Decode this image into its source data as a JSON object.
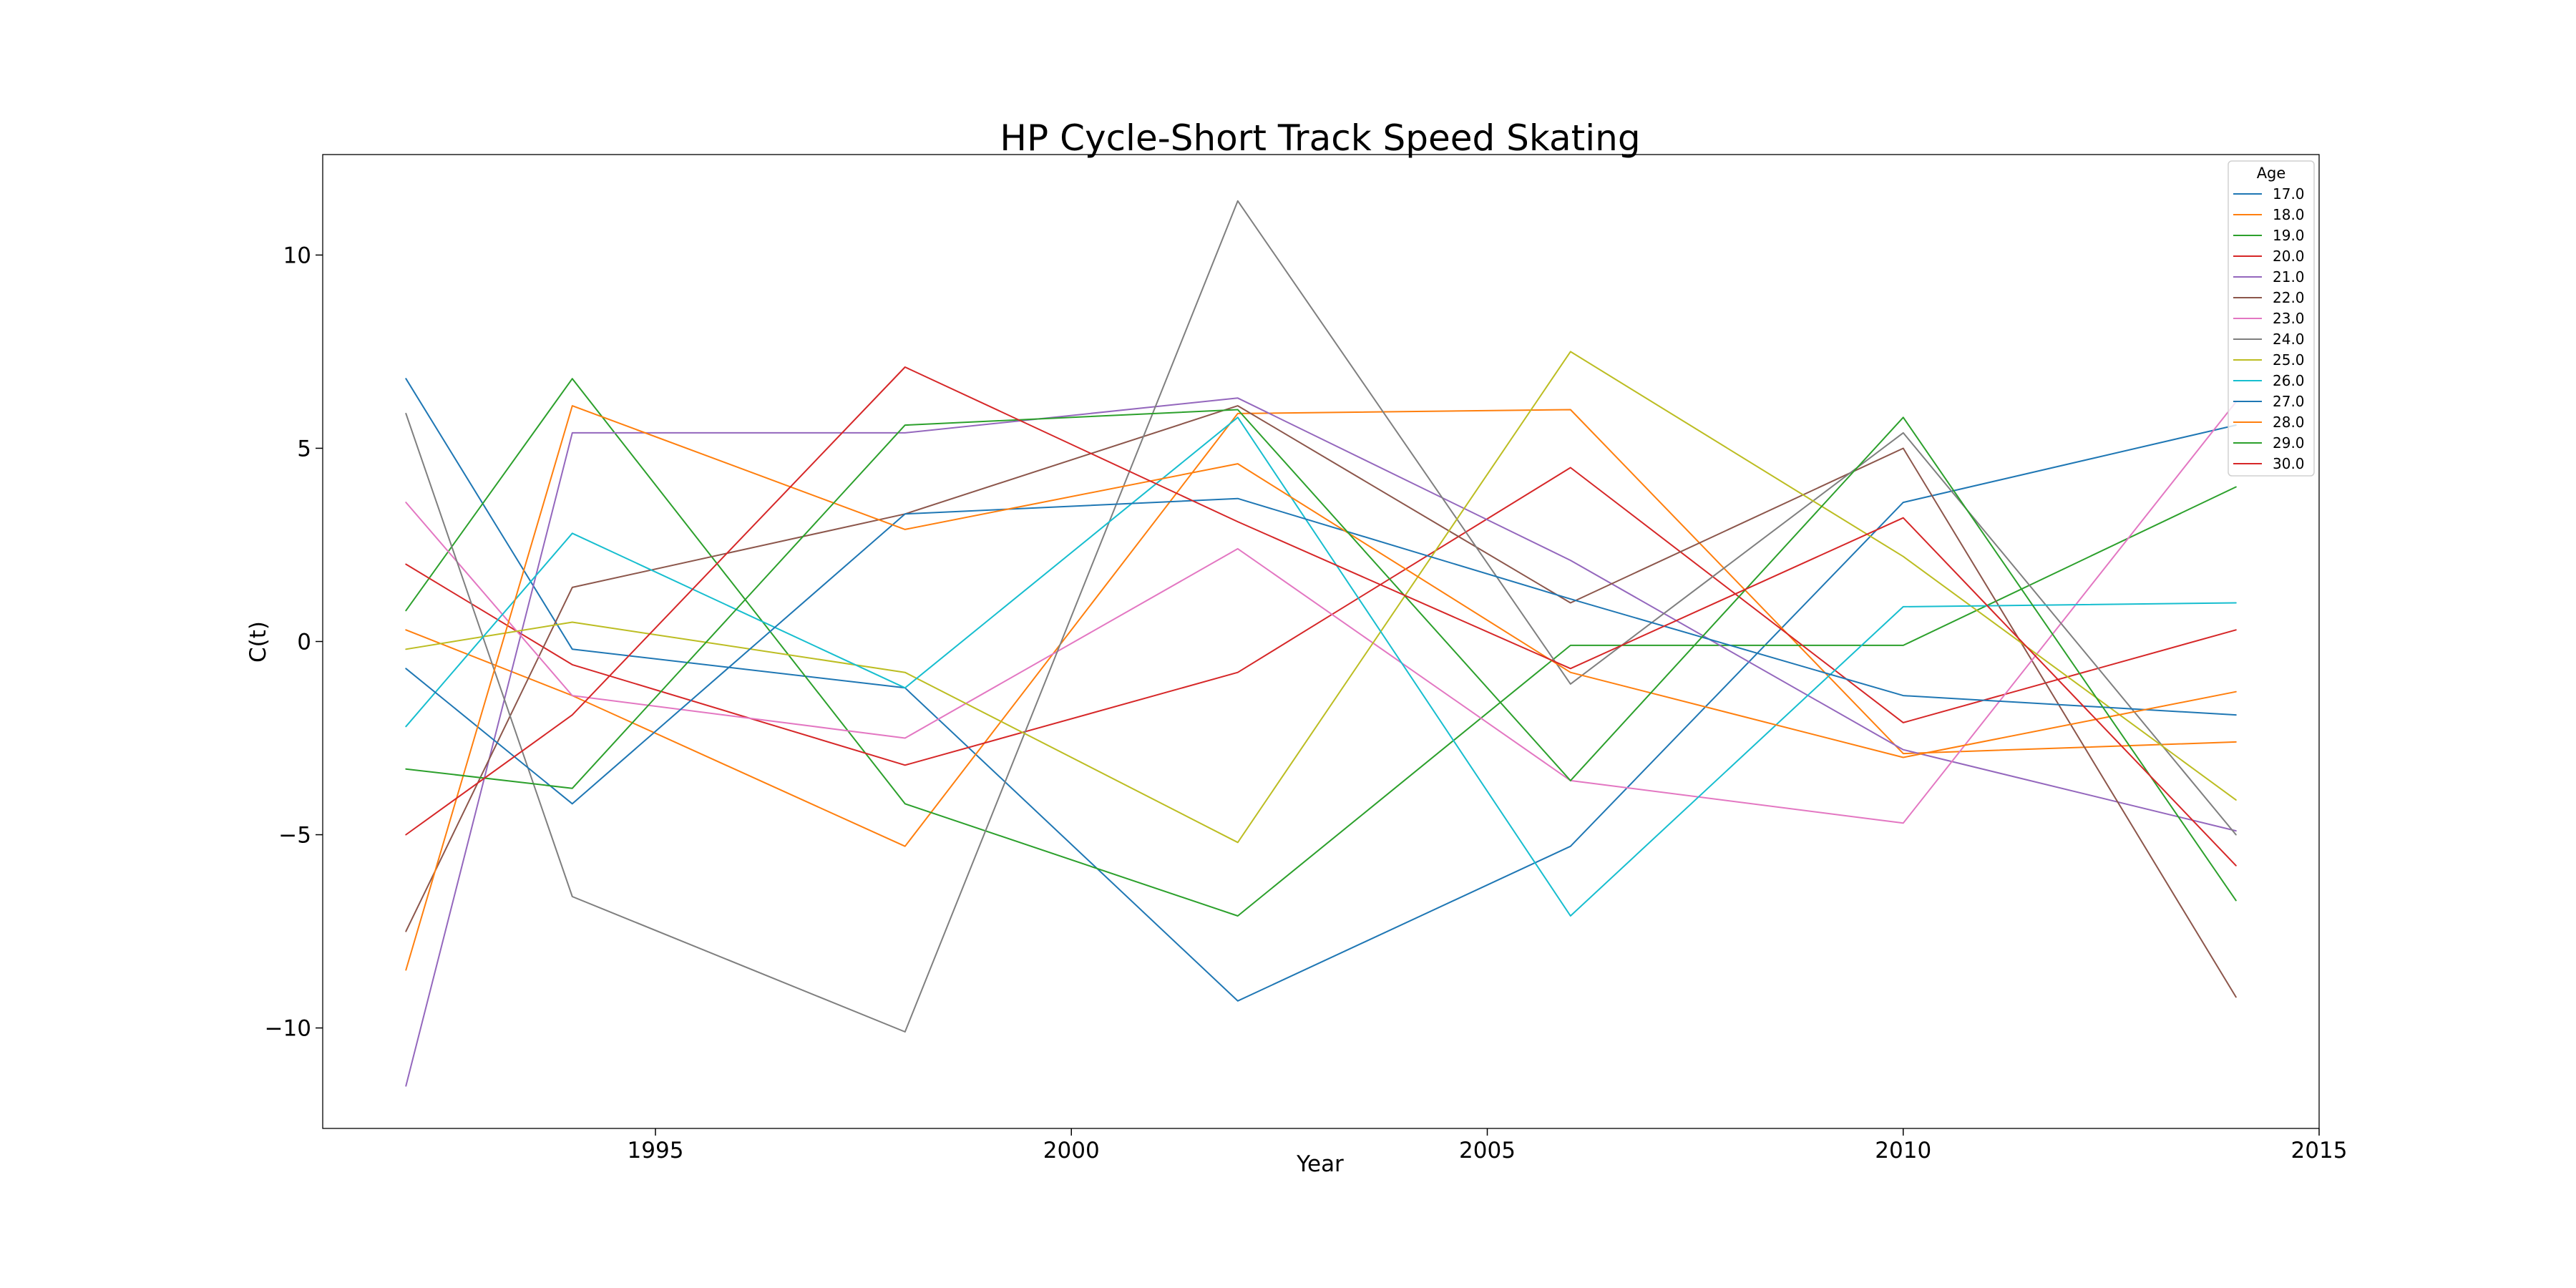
{
  "chart_data": {
    "type": "line",
    "title": "HP Cycle-Short Track Speed Skating",
    "xlabel": "Year",
    "ylabel": "C(t)",
    "xlim": [
      1991,
      2015
    ],
    "ylim": [
      -12.6,
      12.6
    ],
    "xticks": [
      1995,
      2000,
      2005,
      2010,
      2015
    ],
    "yticks": [
      -10,
      -5,
      0,
      5,
      10
    ],
    "grid": false,
    "legend": {
      "title": "Age",
      "position": "top-right"
    },
    "x": [
      1992,
      1994,
      1998,
      2002,
      2006,
      2010,
      2014
    ],
    "series": [
      {
        "name": "17.0",
        "color": "#1f77b4",
        "values": [
          6.8,
          -0.2,
          -1.2,
          -9.3,
          -5.3,
          3.6,
          5.6
        ]
      },
      {
        "name": "18.0",
        "color": "#ff7f0e",
        "values": [
          0.3,
          -1.4,
          -5.3,
          5.9,
          6.0,
          -2.9,
          -2.6
        ]
      },
      {
        "name": "19.0",
        "color": "#2ca02c",
        "values": [
          0.8,
          6.8,
          -4.2,
          -7.1,
          -0.1,
          -0.1,
          4.0
        ]
      },
      {
        "name": "20.0",
        "color": "#d62728",
        "values": [
          2.0,
          -0.6,
          -3.2,
          -0.8,
          4.5,
          -2.1,
          0.3
        ]
      },
      {
        "name": "21.0",
        "color": "#9467bd",
        "values": [
          -11.5,
          5.4,
          5.4,
          6.3,
          2.1,
          -2.8,
          -4.9
        ]
      },
      {
        "name": "22.0",
        "color": "#8c564b",
        "values": [
          -7.5,
          1.4,
          3.3,
          6.1,
          1.0,
          5.0,
          -9.2
        ]
      },
      {
        "name": "23.0",
        "color": "#e377c2",
        "values": [
          3.6,
          -1.4,
          -2.5,
          2.4,
          -3.6,
          -4.7,
          6.2
        ]
      },
      {
        "name": "24.0",
        "color": "#7f7f7f",
        "values": [
          5.9,
          -6.6,
          -10.1,
          11.4,
          -1.1,
          5.4,
          -5.0
        ]
      },
      {
        "name": "25.0",
        "color": "#bcbd22",
        "values": [
          -0.2,
          0.5,
          -0.8,
          -5.2,
          7.5,
          2.2,
          -4.1
        ]
      },
      {
        "name": "26.0",
        "color": "#17becf",
        "values": [
          -2.2,
          2.8,
          -1.2,
          5.8,
          -7.1,
          0.9,
          1.0
        ]
      },
      {
        "name": "27.0",
        "color": "#1f77b4",
        "values": [
          -0.7,
          -4.2,
          3.3,
          3.7,
          1.1,
          -1.4,
          -1.9
        ]
      },
      {
        "name": "28.0",
        "color": "#ff7f0e",
        "values": [
          -8.5,
          6.1,
          2.9,
          4.6,
          -0.8,
          -3.0,
          -1.3
        ]
      },
      {
        "name": "29.0",
        "color": "#2ca02c",
        "values": [
          -3.3,
          -3.8,
          5.6,
          6.0,
          -3.6,
          5.8,
          -6.7
        ]
      },
      {
        "name": "30.0",
        "color": "#d62728",
        "values": [
          -5.0,
          -1.9,
          7.1,
          3.1,
          -0.7,
          3.2,
          -5.8
        ]
      }
    ]
  }
}
